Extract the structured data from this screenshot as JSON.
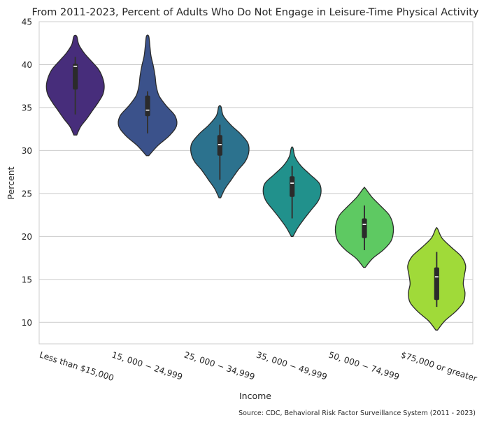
{
  "chart_data": {
    "type": "violin",
    "title": "From 2011-2023, Percent of Adults Who Do Not Engage in Leisure-Time Physical Activity",
    "xlabel": "Income",
    "ylabel": "Percent",
    "source": "Source: CDC, Behavioral Risk Factor Surveillance System (2011 - 2023)",
    "ylim": [
      7.5,
      45
    ],
    "yticks": [
      10,
      15,
      20,
      25,
      30,
      35,
      40,
      45
    ],
    "grid": true,
    "categories": [
      "Less than $15,000",
      "$15,000 - $24,999",
      "$25,000 - $34,999",
      "$35,000 - $49,999",
      "$50,000 - $74,999",
      "$75,000 or greater"
    ],
    "category_tick_labels": [
      "Less than $15,000",
      "15, 000 − 24,999",
      "25, 000 − 34,999",
      "35, 000 − 49,999",
      "50, 000 − 74,999",
      "$75,000 or greater"
    ],
    "colors": [
      "#472d7b",
      "#3b528b",
      "#2c728e",
      "#21918c",
      "#5ec962",
      "#a0da39"
    ],
    "series": [
      {
        "category": "Less than $15,000",
        "min": 34.2,
        "q1": 37.1,
        "median": 39.8,
        "q3": 40.1,
        "max": 40.9,
        "kde_low": 31.8,
        "kde_high": 43.3,
        "density": [
          0.05,
          0.18,
          0.4,
          0.6,
          0.8,
          0.96,
          1.0,
          0.94,
          0.8,
          0.55,
          0.3,
          0.12,
          0.05
        ]
      },
      {
        "category": "$15,000 - $24,999",
        "min": 32.0,
        "q1": 34.0,
        "median": 34.7,
        "q3": 36.4,
        "max": 36.9,
        "kde_low": 29.4,
        "kde_high": 43.3,
        "density": [
          0.04,
          0.35,
          0.75,
          1.0,
          0.95,
          0.65,
          0.4,
          0.3,
          0.26,
          0.2,
          0.12,
          0.08,
          0.04
        ]
      },
      {
        "category": "$25,000 - $34,999",
        "min": 26.6,
        "q1": 29.4,
        "median": 30.7,
        "q3": 31.8,
        "max": 33.0,
        "kde_low": 24.5,
        "kde_high": 35.1,
        "density": [
          0.03,
          0.18,
          0.4,
          0.62,
          0.88,
          1.0,
          0.97,
          0.72,
          0.38,
          0.12,
          0.04
        ]
      },
      {
        "category": "$35,000 - $49,999",
        "min": 22.1,
        "q1": 24.6,
        "median": 26.2,
        "q3": 27.0,
        "max": 28.2,
        "kde_low": 20.0,
        "kde_high": 30.3,
        "density": [
          0.03,
          0.2,
          0.42,
          0.66,
          0.9,
          1.0,
          0.94,
          0.62,
          0.3,
          0.1,
          0.03
        ]
      },
      {
        "category": "$50,000 - $74,999",
        "min": 18.4,
        "q1": 19.8,
        "median": 21.4,
        "q3": 22.1,
        "max": 23.6,
        "kde_low": 16.4,
        "kde_high": 25.6,
        "density": [
          0.03,
          0.28,
          0.66,
          0.92,
          1.0,
          0.98,
          0.85,
          0.56,
          0.26,
          0.03
        ]
      },
      {
        "category": "$75,000 or greater",
        "min": 11.8,
        "q1": 12.6,
        "median": 15.3,
        "q3": 16.4,
        "max": 18.2,
        "kde_low": 9.1,
        "kde_high": 20.9,
        "density": [
          0.03,
          0.28,
          0.65,
          0.92,
          0.98,
          0.92,
          0.96,
          1.0,
          0.85,
          0.5,
          0.18,
          0.03
        ]
      }
    ]
  }
}
